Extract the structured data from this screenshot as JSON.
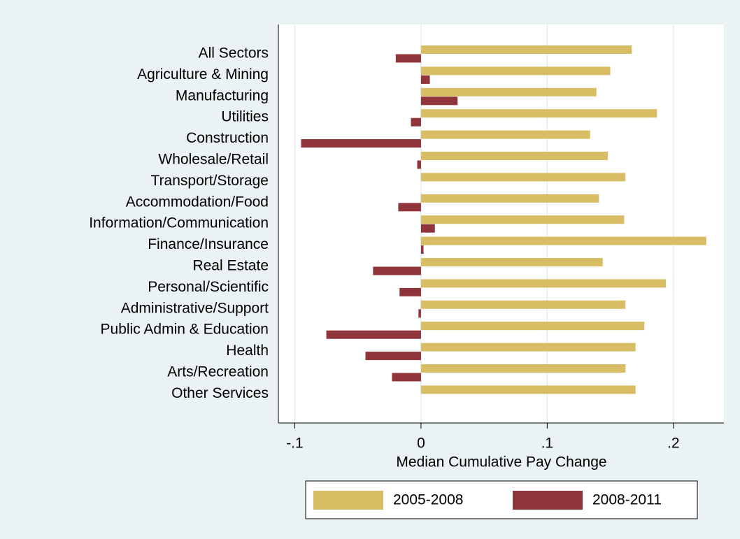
{
  "chart_data": {
    "type": "hbar",
    "x_label": "Median Cumulative Pay Change",
    "categories": [
      "All Sectors",
      "Agriculture & Mining",
      "Manufacturing",
      "Utilities",
      "Construction",
      "Wholesale/Retail",
      "Transport/Storage",
      "Accommodation/Food",
      "Information/Communication",
      "Finance/Insurance",
      "Real Estate",
      "Personal/Scientific",
      "Administrative/Support",
      "Public Admin & Education",
      "Health",
      "Arts/Recreation",
      "Other Services"
    ],
    "series": [
      {
        "name": "2005-2008",
        "color": "#d8bd64",
        "values": [
          0.167,
          0.15,
          0.139,
          0.187,
          0.134,
          0.148,
          0.162,
          0.141,
          0.161,
          0.226,
          0.144,
          0.194,
          0.162,
          0.177,
          0.17,
          0.162,
          0.17
        ]
      },
      {
        "name": "2008-2011",
        "color": "#90353b",
        "values": [
          -0.02,
          0.007,
          0.029,
          -0.008,
          -0.095,
          -0.003,
          0,
          -0.018,
          0.011,
          0.002,
          -0.038,
          -0.017,
          -0.002,
          -0.075,
          -0.044,
          -0.023,
          0
        ]
      }
    ],
    "xlim": [
      -0.113,
      0.24
    ],
    "xticks": [
      {
        "value": -0.1,
        "label": "-.1"
      },
      0,
      {
        "value": 0.1,
        "label": ".1"
      },
      {
        "value": 0.2,
        "label": ".2"
      }
    ],
    "grid": true
  }
}
